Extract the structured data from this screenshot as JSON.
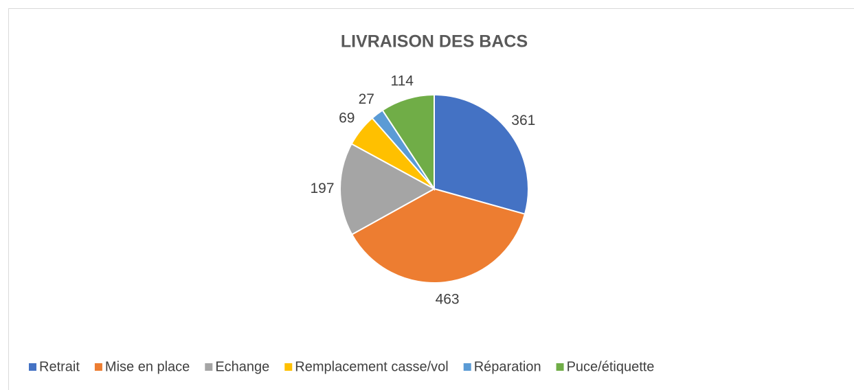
{
  "chart_data": {
    "type": "pie",
    "title": "LIVRAISON DES BACS",
    "categories": [
      "Retrait",
      "Mise en place",
      "Echange",
      "Remplacement casse/vol",
      "Réparation",
      "Puce/étiquette"
    ],
    "values": [
      361,
      463,
      197,
      69,
      27,
      114
    ],
    "colors": [
      "#4472c4",
      "#ed7d31",
      "#a5a5a5",
      "#ffc000",
      "#5b9bd5",
      "#70ad47"
    ],
    "legend": "bottom"
  }
}
